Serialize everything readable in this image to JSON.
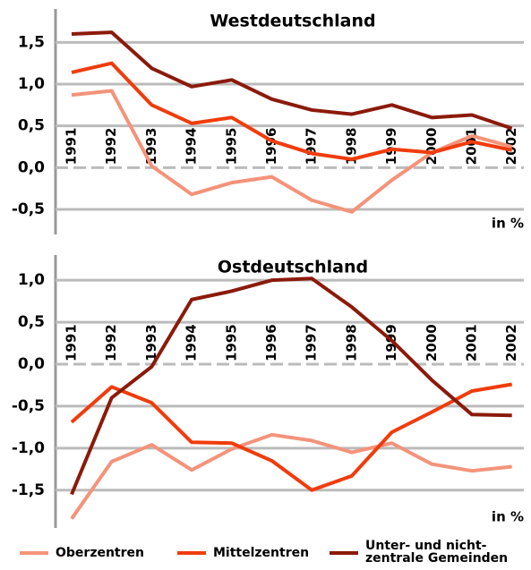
{
  "chart_data": [
    {
      "type": "line",
      "title": "Westdeutschland",
      "unit_label": "in %",
      "categories": [
        "1991",
        "1992",
        "1993",
        "1994",
        "1995",
        "1996",
        "1997",
        "1998",
        "1999",
        "2000",
        "2001",
        "2002"
      ],
      "ylim": [
        -0.8,
        1.9
      ],
      "yticks": [
        {
          "value": 1.5,
          "label": "1,5"
        },
        {
          "value": 1.0,
          "label": "1,0"
        },
        {
          "value": 0.5,
          "label": "0,5"
        },
        {
          "value": 0.0,
          "label": "0,0"
        },
        {
          "value": -0.5,
          "label": "-0,5"
        }
      ],
      "grid": true,
      "series": [
        {
          "name": "Oberzentren",
          "color": "#f4937a",
          "values": [
            0.87,
            0.92,
            0.02,
            -0.32,
            -0.18,
            -0.11,
            -0.39,
            -0.53,
            -0.15,
            0.18,
            0.38,
            0.25
          ]
        },
        {
          "name": "Mittelzentren",
          "color": "#f03c0c",
          "values": [
            1.14,
            1.25,
            0.75,
            0.53,
            0.6,
            0.32,
            0.17,
            0.1,
            0.22,
            0.18,
            0.31,
            0.21
          ]
        },
        {
          "name": "Unter- und nicht-\nzentrale Gemeinden",
          "color": "#8b1a0a",
          "values": [
            1.6,
            1.62,
            1.19,
            0.97,
            1.05,
            0.82,
            0.69,
            0.64,
            0.75,
            0.6,
            0.63,
            0.47
          ]
        }
      ]
    },
    {
      "type": "line",
      "title": "Ostdeutschland",
      "unit_label": "in %",
      "categories": [
        "1991",
        "1992",
        "1993",
        "1994",
        "1995",
        "1996",
        "1997",
        "1998",
        "1999",
        "2000",
        "2001",
        "2002"
      ],
      "ylim": [
        -1.95,
        1.3
      ],
      "yticks": [
        {
          "value": 1.0,
          "label": "1,0"
        },
        {
          "value": 0.5,
          "label": "0,5"
        },
        {
          "value": 0.0,
          "label": "0,0"
        },
        {
          "value": -0.5,
          "label": "-0,5"
        },
        {
          "value": -1.0,
          "label": "-1,0"
        },
        {
          "value": -1.5,
          "label": "-1,5"
        }
      ],
      "grid": true,
      "series": [
        {
          "color": "#f4937a",
          "values": [
            -1.84,
            -1.16,
            -0.96,
            -1.26,
            -1.01,
            -0.84,
            -0.91,
            -1.05,
            -0.94,
            -1.19,
            -1.27,
            -1.22
          ]
        },
        {
          "color": "#f03c0c",
          "values": [
            -0.69,
            -0.27,
            -0.46,
            -0.93,
            -0.94,
            -1.15,
            -1.5,
            -1.33,
            -0.81,
            -0.57,
            -0.32,
            -0.24
          ]
        },
        {
          "color": "#8b1a0a",
          "values": [
            -1.55,
            -0.4,
            -0.03,
            0.77,
            0.87,
            1.0,
            1.02,
            0.68,
            0.28,
            -0.19,
            -0.6,
            -0.61
          ]
        }
      ]
    }
  ]
}
